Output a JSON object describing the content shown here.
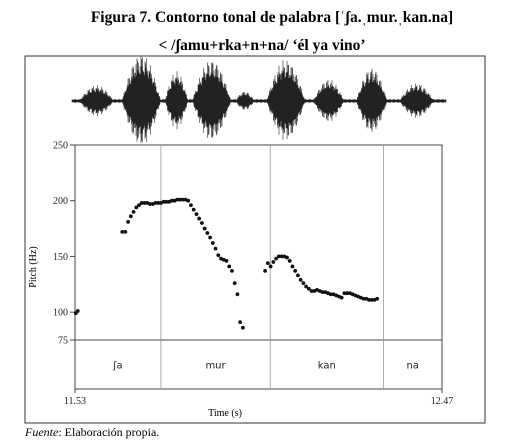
{
  "caption": {
    "title_line1": "Figura 7. Contorno tonal de palabra [ˈʃa.ˌmur.ˌkan.na]",
    "title_line2": "< /ʃamu+rka+n+na/ ‘él ya vino’"
  },
  "source": {
    "label": "Fuente",
    "text": ": Elaboración propia."
  },
  "chart_data": {
    "type": "scatter",
    "title": "",
    "xlabel": "Time (s)",
    "ylabel": "Pitch (Hz)",
    "xlim": [
      11.53,
      12.47
    ],
    "ylim": [
      75,
      250
    ],
    "xtick_labels": [
      "11.53",
      "12.47"
    ],
    "yticks": [
      75,
      100,
      150,
      200,
      250
    ],
    "grid": false,
    "x_unit": "s",
    "y_unit": "Hz",
    "syllable_tier": {
      "labels": [
        "ʃa",
        "mur",
        "kan",
        "na"
      ],
      "boundaries": [
        11.53,
        11.75,
        12.03,
        12.32,
        12.47
      ]
    },
    "series": [
      {
        "points": [
          [
            11.532,
            99
          ],
          [
            11.537,
            101
          ],
          [
            11.651,
            172
          ],
          [
            11.659,
            172
          ],
          [
            11.666,
            181
          ],
          [
            11.673,
            186
          ],
          [
            11.68,
            190
          ],
          [
            11.687,
            194
          ],
          [
            11.694,
            196
          ],
          [
            11.701,
            198
          ],
          [
            11.708,
            198
          ],
          [
            11.715,
            198
          ],
          [
            11.722,
            197
          ],
          [
            11.729,
            197
          ],
          [
            11.736,
            198
          ],
          [
            11.743,
            198
          ],
          [
            11.75,
            198
          ],
          [
            11.757,
            199
          ],
          [
            11.764,
            199
          ],
          [
            11.771,
            199
          ],
          [
            11.778,
            200
          ],
          [
            11.785,
            200
          ],
          [
            11.792,
            201
          ],
          [
            11.799,
            201
          ],
          [
            11.806,
            201
          ],
          [
            11.813,
            201
          ],
          [
            11.82,
            200
          ],
          [
            11.827,
            196
          ],
          [
            11.834,
            192
          ],
          [
            11.841,
            188
          ],
          [
            11.848,
            184
          ],
          [
            11.855,
            180
          ],
          [
            11.862,
            175
          ],
          [
            11.869,
            171
          ],
          [
            11.876,
            167
          ],
          [
            11.883,
            162
          ],
          [
            11.89,
            157
          ],
          [
            11.897,
            151
          ],
          [
            11.904,
            148
          ],
          [
            11.911,
            147
          ],
          [
            11.918,
            146
          ],
          [
            11.925,
            141
          ],
          [
            11.932,
            137
          ],
          [
            11.939,
            126
          ],
          [
            11.946,
            116
          ],
          [
            11.953,
            91
          ],
          [
            11.96,
            86
          ],
          [
            12.017,
            137
          ],
          [
            12.024,
            144
          ],
          [
            12.031,
            141
          ],
          [
            12.038,
            145
          ],
          [
            12.045,
            148
          ],
          [
            12.052,
            150
          ],
          [
            12.059,
            150
          ],
          [
            12.066,
            150
          ],
          [
            12.073,
            149
          ],
          [
            12.08,
            146
          ],
          [
            12.087,
            141
          ],
          [
            12.094,
            137
          ],
          [
            12.101,
            133
          ],
          [
            12.108,
            129
          ],
          [
            12.115,
            126
          ],
          [
            12.122,
            123
          ],
          [
            12.129,
            121
          ],
          [
            12.136,
            119
          ],
          [
            12.143,
            119
          ],
          [
            12.15,
            120
          ],
          [
            12.157,
            119
          ],
          [
            12.164,
            118
          ],
          [
            12.171,
            118
          ],
          [
            12.178,
            117
          ],
          [
            12.185,
            116
          ],
          [
            12.192,
            116
          ],
          [
            12.199,
            115
          ],
          [
            12.206,
            114
          ],
          [
            12.213,
            113
          ],
          [
            12.22,
            117
          ],
          [
            12.227,
            117
          ],
          [
            12.234,
            117
          ],
          [
            12.241,
            116
          ],
          [
            12.248,
            115
          ],
          [
            12.255,
            114
          ],
          [
            12.262,
            113
          ],
          [
            12.269,
            112
          ],
          [
            12.276,
            112
          ],
          [
            12.283,
            111
          ],
          [
            12.29,
            111
          ],
          [
            12.297,
            111
          ],
          [
            12.304,
            112
          ]
        ]
      }
    ]
  }
}
